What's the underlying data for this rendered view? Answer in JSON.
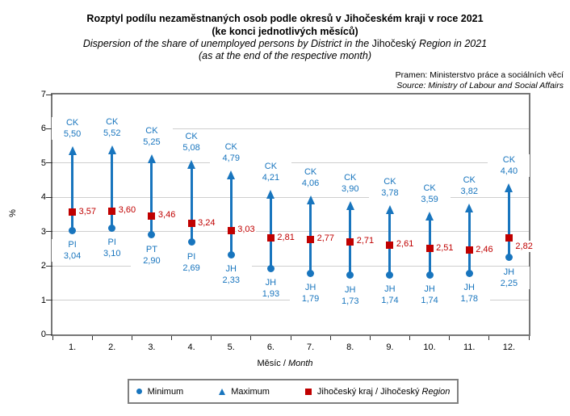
{
  "title": {
    "line1_cs": "Rozptyl podílu nezaměstnaných osob podle okresů v Jihočeském kraji v roce 2021",
    "line2_cs": "(ke konci jednotlivých měsíců)",
    "line1_en_pre": "Dispersion of the share of unemployed persons by District in the ",
    "line1_en_name": "Jihočeský",
    "line1_en_post": " Region in 2021",
    "line2_en": "(as at the end of the respective month)"
  },
  "source": {
    "line1": "Pramen: Ministerstvo práce a sociálních věcí",
    "line2": "Source: Ministry of Labour and Social Affairs"
  },
  "legend": {
    "min_label": "Minimum",
    "max_label": "Maximum",
    "region_label_plain": "Jihočeský kraj / Jihočeský ",
    "region_label_italic": "Region"
  },
  "chart_data": {
    "type": "range",
    "title": "Rozptyl podílu nezaměstnaných osob podle okresů v Jihočeském kraji v roce 2021 (ke konci jednotlivých měsíců)",
    "subtitle": "Dispersion of the share of unemployed persons by District in the Jihočeský Region in 2021 (as at the end of the respective month)",
    "categories": [
      "1.",
      "2.",
      "3.",
      "4.",
      "5.",
      "6.",
      "7.",
      "8.",
      "9.",
      "10.",
      "11.",
      "12."
    ],
    "xlabel_cs": "Měsíc / ",
    "xlabel_en": "Month",
    "ylabel": "%",
    "ylim": [
      0,
      7
    ],
    "yticks": [
      0,
      1,
      2,
      3,
      4,
      5,
      6,
      7
    ],
    "grid": true,
    "legend_position": "bottom",
    "decimal_separator": ",",
    "colors": {
      "blue": "#1875BE",
      "red": "#C00000",
      "gridline": "#CFCFCF"
    },
    "series": [
      {
        "name": "Minimum",
        "marker": "circle",
        "color": "#1875BE",
        "districts": [
          "PI",
          "PI",
          "PT",
          "PI",
          "JH",
          "JH",
          "JH",
          "JH",
          "JH",
          "JH",
          "JH",
          "JH"
        ],
        "values": [
          3.04,
          3.1,
          2.9,
          2.69,
          2.33,
          1.93,
          1.79,
          1.73,
          1.74,
          1.74,
          1.78,
          2.25
        ]
      },
      {
        "name": "Maximum",
        "marker": "triangle",
        "color": "#1875BE",
        "districts": [
          "CK",
          "CK",
          "CK",
          "CK",
          "CK",
          "CK",
          "CK",
          "CK",
          "CK",
          "CK",
          "CK",
          "CK"
        ],
        "values": [
          5.5,
          5.52,
          5.25,
          5.08,
          4.79,
          4.21,
          4.06,
          3.9,
          3.78,
          3.59,
          3.82,
          4.4
        ]
      },
      {
        "name": "Jihočeský kraj / Jihočeský Region",
        "marker": "square",
        "color": "#C00000",
        "values": [
          3.57,
          3.6,
          3.46,
          3.24,
          3.03,
          2.81,
          2.77,
          2.71,
          2.61,
          2.51,
          2.46,
          2.82
        ]
      }
    ]
  }
}
